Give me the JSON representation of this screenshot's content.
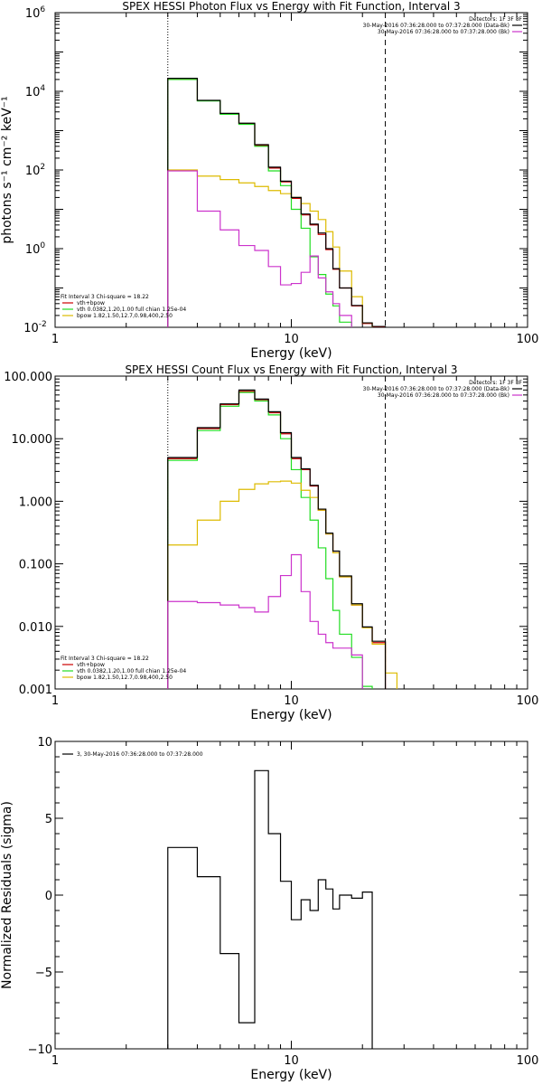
{
  "colors": {
    "data": "#000000",
    "total": "#cc0000",
    "vth": "#22dd22",
    "bpow": "#ddbb00",
    "bk": "#cc33cc"
  },
  "chart_data": [
    {
      "type": "line",
      "title": "SPEX HESSI Photon Flux vs Energy with Fit Function, Interval 3",
      "xlabel": "Energy (keV)",
      "ylabel": "photons s⁻¹ cm⁻² keV⁻¹",
      "xscale": "log",
      "yscale": "log",
      "xlim": [
        1,
        100
      ],
      "ylim": [
        0.01,
        1000000
      ],
      "xticks": [
        {
          "v": 1,
          "label": "1"
        },
        {
          "v": 10,
          "label": "10"
        },
        {
          "v": 100,
          "label": "100"
        }
      ],
      "yticks": [
        {
          "v": 0.01,
          "b": "10",
          "e": "-2"
        },
        {
          "v": 1,
          "b": "10",
          "e": "0"
        },
        {
          "v": 100,
          "b": "10",
          "e": "2"
        },
        {
          "v": 10000,
          "b": "10",
          "e": "4"
        },
        {
          "v": 1000000,
          "b": "10",
          "e": "6"
        }
      ],
      "vlines": [
        {
          "x": 3,
          "style": "dotted"
        },
        {
          "x": 25,
          "style": "dashed"
        }
      ],
      "bin_edges": [
        3,
        4,
        5,
        6,
        7,
        8,
        9,
        10,
        11,
        12,
        13,
        14,
        15,
        16,
        18,
        20,
        22,
        25,
        28
      ],
      "series": [
        {
          "name": "vth+bpow",
          "color_key": "total",
          "values": [
            21000,
            5800,
            2700,
            1500,
            420,
            112,
            50,
            19,
            7.2,
            4.0,
            2.3,
            0.95,
            0.3,
            0.1,
            0.035,
            0.0125,
            0.01
          ]
        },
        {
          "name": "vth",
          "color_key": "vth",
          "values": [
            20000,
            5700,
            2600,
            1450,
            400,
            95,
            40,
            10,
            3.3,
            0.62,
            0.22,
            0.07,
            0.035,
            0.0135,
            0.0055,
            0.0055,
            0.0055
          ]
        },
        {
          "name": "bpow",
          "color_key": "bpow",
          "values": [
            100,
            70,
            57,
            47,
            38,
            30,
            25,
            20,
            14,
            9,
            5.5,
            2.7,
            1.1,
            0.27,
            0.06,
            0.013,
            0.0094,
            0.0085
          ]
        },
        {
          "name": "data",
          "color_key": "data",
          "values": [
            21500,
            5900,
            2750,
            1550,
            440,
            118,
            52,
            20,
            7.6,
            4.2,
            2.5,
            1.0,
            0.31,
            0.1,
            0.036,
            0.013,
            0.0105
          ]
        },
        {
          "name": "bk",
          "color_key": "bk",
          "values": [
            95,
            9,
            3,
            1.2,
            0.9,
            0.35,
            0.12,
            0.13,
            0.25,
            0.65,
            0.18,
            0.08,
            0.04,
            0.02,
            0.0095
          ]
        }
      ],
      "legend_top": {
        "lines": [
          {
            "text": "Detectors: 1F 3F 8F",
            "color_key": null
          },
          {
            "text": "30-May-2016 07:36:28.000 to 07:37:28.000 (Data-Bk)",
            "color_key": "data"
          },
          {
            "text": "30-May-2016 07:36:28.000 to 07:37:28.000 (Bk)",
            "color_key": "bk"
          }
        ]
      },
      "legend_fit": {
        "header": "Fit Interval  3    Chi-square = 18.22",
        "entries": [
          {
            "text": "vth+bpow",
            "color_key": "total"
          },
          {
            "text": "vth 0.0382,1.20,1.00  full chian 1.25e-04",
            "color_key": "vth"
          },
          {
            "text": "bpow 1.82,1.50,12.7,0.98,400,2.50",
            "color_key": "bpow"
          }
        ]
      }
    },
    {
      "type": "line",
      "title": "SPEX HESSI Count Flux vs Energy with Fit Function, Interval 3",
      "xlabel": "Energy (keV)",
      "ylabel": "",
      "xscale": "log",
      "yscale": "log",
      "xlim": [
        1,
        100
      ],
      "ylim": [
        0.001,
        100
      ],
      "xticks": [
        {
          "v": 1,
          "label": "1"
        },
        {
          "v": 10,
          "label": "10"
        },
        {
          "v": 100,
          "label": "100"
        }
      ],
      "yticks": [
        {
          "v": 0.001,
          "label": "0.001"
        },
        {
          "v": 0.01,
          "label": "0.010"
        },
        {
          "v": 0.1,
          "label": "0.100"
        },
        {
          "v": 1,
          "label": "1.000"
        },
        {
          "v": 10,
          "label": "10.000"
        },
        {
          "v": 100,
          "label": "100.000"
        }
      ],
      "vlines": [
        {
          "x": 3,
          "style": "dotted"
        },
        {
          "x": 25,
          "style": "dashed"
        }
      ],
      "bin_edges": [
        3,
        4,
        5,
        6,
        7,
        8,
        9,
        10,
        11,
        12,
        13,
        14,
        15,
        16,
        18,
        20,
        22,
        25,
        28
      ],
      "series": [
        {
          "name": "vth+bpow",
          "color_key": "total",
          "values": [
            4.8,
            14.5,
            35,
            57,
            42,
            26,
            12,
            4.8,
            3.2,
            1.75,
            0.72,
            0.3,
            0.15,
            0.062,
            0.022,
            0.0095,
            0.0055
          ]
        },
        {
          "name": "vth",
          "color_key": "vth",
          "values": [
            4.5,
            13.5,
            33,
            55,
            40,
            24,
            10,
            3.2,
            1.15,
            0.5,
            0.18,
            0.058,
            0.018,
            0.0075,
            0.0032,
            0.0011
          ]
        },
        {
          "name": "bpow",
          "color_key": "bpow",
          "values": [
            0.2,
            0.5,
            1.0,
            1.55,
            1.9,
            2.05,
            2.1,
            1.95,
            1.5,
            1.15,
            0.72,
            0.3,
            0.15,
            0.062,
            0.022,
            0.0095,
            0.0052,
            0.0018
          ]
        },
        {
          "name": "data",
          "color_key": "data",
          "values": [
            5.0,
            15,
            36,
            60,
            43,
            27,
            12.5,
            5.0,
            3.3,
            1.8,
            0.75,
            0.31,
            0.16,
            0.064,
            0.023,
            0.0098,
            0.0058
          ]
        },
        {
          "name": "bk",
          "color_key": "bk",
          "values": [
            0.025,
            0.024,
            0.022,
            0.02,
            0.017,
            0.03,
            0.065,
            0.14,
            0.036,
            0.012,
            0.0075,
            0.0055,
            0.0045,
            0.0045,
            0.0035
          ]
        }
      ],
      "legend_top": {
        "lines": [
          {
            "text": "Detectors: 1F 3F 8F",
            "color_key": null
          },
          {
            "text": "30-May-2016 07:36:28.000 to 07:37:28.000 (Data-Bk)",
            "color_key": "data"
          },
          {
            "text": "30-May-2016 07:36:28.000 to 07:37:28.000 (Bk)",
            "color_key": "bk"
          }
        ]
      },
      "legend_fit": {
        "header": "Fit Interval  3    Chi-square = 18.22",
        "entries": [
          {
            "text": "vth+bpow",
            "color_key": "total"
          },
          {
            "text": "vth 0.0382,1.20,1.00  full chian 1.25e-04",
            "color_key": "vth"
          },
          {
            "text": "bpow 1.82,1.50,12.7,0.98,400,2.50",
            "color_key": "bpow"
          }
        ]
      }
    },
    {
      "type": "line",
      "title": "",
      "xlabel": "Energy (keV)",
      "ylabel": "Normalized Residuals (sigma)",
      "xscale": "log",
      "yscale": "linear",
      "xlim": [
        1,
        100
      ],
      "ylim": [
        -10,
        10
      ],
      "xticks": [
        {
          "v": 1,
          "label": "1"
        },
        {
          "v": 10,
          "label": "10"
        },
        {
          "v": 100,
          "label": "100"
        }
      ],
      "yticks": [
        {
          "v": -10,
          "label": "−10"
        },
        {
          "v": -5,
          "label": "−5"
        },
        {
          "v": 0,
          "label": "0"
        },
        {
          "v": 5,
          "label": "5"
        },
        {
          "v": 10,
          "label": "10"
        }
      ],
      "vlines": [],
      "bin_edges": [
        3,
        4,
        5,
        6,
        7,
        8,
        9,
        10,
        11,
        12,
        13,
        14,
        15,
        16,
        18,
        20,
        22,
        25
      ],
      "series": [
        {
          "name": "3, 30-May-2016 07:36:28.000 to 07:37:28.000",
          "color_key": "data",
          "values": [
            3.1,
            1.2,
            -3.8,
            -8.3,
            8.1,
            4.0,
            0.9,
            -1.6,
            -0.3,
            -1.0,
            1.0,
            0.4,
            -0.9,
            0.0,
            -0.2,
            0.2
          ]
        }
      ],
      "legend_top": {
        "lines": []
      },
      "legend_fit": {
        "header": "",
        "entries": [
          {
            "text": "3, 30-May-2016 07:36:28.000 to 07:37:28.000",
            "color_key": "data"
          }
        ]
      }
    }
  ]
}
